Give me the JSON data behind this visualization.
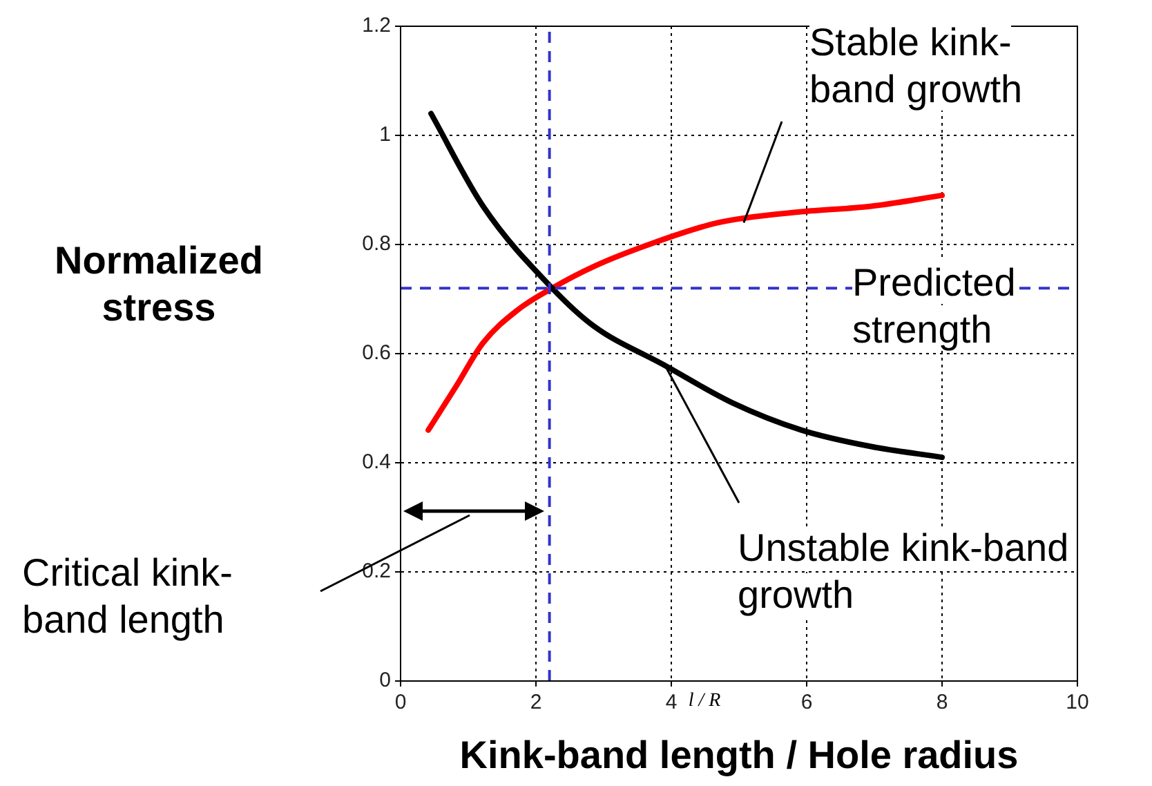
{
  "chart_data": {
    "type": "line",
    "xlabel": "Kink-band length / Hole radius",
    "ylabel": "Normalized stress",
    "annotations": [
      {
        "text": "Stable kink-band growth",
        "x": 5.07,
        "y": 0.84
      },
      "Predicted strength",
      {
        "text": "Unstable kink-band growth",
        "x": 3.9,
        "y": 0.58
      },
      "Critical kink-band length",
      "l / R"
    ],
    "xlim": [
      0,
      10
    ],
    "xticks": [
      0,
      2,
      4,
      6,
      8,
      10
    ],
    "ylim": [
      0,
      1.2
    ],
    "yticks": [
      0,
      0.2,
      0.4,
      0.6,
      0.8,
      1,
      1.2
    ],
    "grid": true,
    "legend": false,
    "marker": "none",
    "line_style": "solid",
    "series": [
      {
        "color": "#000000",
        "x": [
          0.45,
          1.22,
          2.24,
          2.86,
          3.88,
          4.9,
          5.92,
          6.94,
          8
        ],
        "values": [
          1.04,
          0.87,
          0.72,
          0.65,
          0.58,
          0.51,
          0.46,
          0.43,
          0.41
        ]
      },
      {
        "color": "#ff0000",
        "x": [
          0.41,
          0.82,
          1.22,
          1.73,
          2.24,
          2.86,
          3.67,
          4.69,
          5.92,
          6.94,
          8
        ],
        "values": [
          0.46,
          0.54,
          0.62,
          0.68,
          0.72,
          0.76,
          0.8,
          0.84,
          0.86,
          0.87,
          0.89
        ]
      }
    ],
    "ref_lines": [
      {
        "axis": "y",
        "value": 0.72,
        "color": "#3333cc",
        "line_style": "dashed"
      },
      {
        "axis": "x",
        "value": 2.2,
        "color": "#3333cc",
        "line_style": "dashed"
      }
    ]
  }
}
